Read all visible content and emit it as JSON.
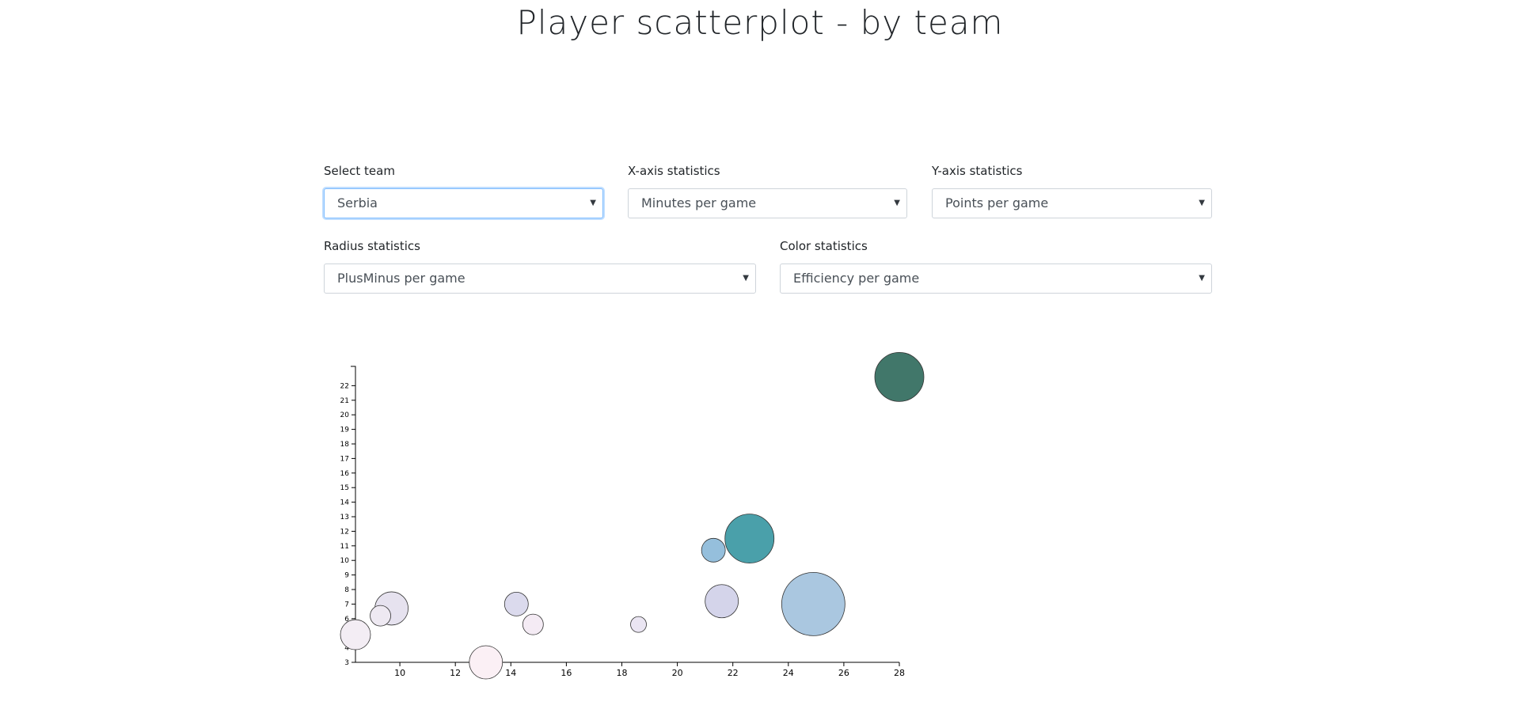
{
  "page": {
    "title": "Player scatterplot - by team"
  },
  "controls": {
    "team": {
      "label": "Select team",
      "value": "Serbia"
    },
    "x_axis": {
      "label": "X-axis statistics",
      "value": "Minutes per game"
    },
    "y_axis": {
      "label": "Y-axis statistics",
      "value": "Points per game"
    },
    "radius": {
      "label": "Radius statistics",
      "value": "PlusMinus per game"
    },
    "color": {
      "label": "Color statistics",
      "value": "Efficiency per game"
    }
  },
  "icons": {
    "dropdown": "chevron-down-icon"
  },
  "chart_data": {
    "type": "scatter",
    "title": "",
    "xlabel": "",
    "ylabel": "",
    "xlim": [
      8.4,
      28
    ],
    "ylim": [
      3,
      23
    ],
    "x_ticks": [
      10,
      12,
      14,
      16,
      18,
      20,
      22,
      24,
      26,
      28
    ],
    "y_ticks": [
      3,
      4,
      5,
      6,
      7,
      8,
      9,
      10,
      11,
      12,
      13,
      14,
      15,
      16,
      17,
      18,
      19,
      20,
      21,
      22
    ],
    "grid": false,
    "points": [
      {
        "x": 28.0,
        "y": 22.6,
        "r": 31,
        "color": "#41776a"
      },
      {
        "x": 22.6,
        "y": 11.5,
        "r": 31,
        "color": "#4aa0aa"
      },
      {
        "x": 21.3,
        "y": 10.7,
        "r": 15,
        "color": "#95bfdc"
      },
      {
        "x": 24.9,
        "y": 7.0,
        "r": 40,
        "color": "#aac7e0"
      },
      {
        "x": 21.6,
        "y": 7.2,
        "r": 21,
        "color": "#d4d4ea"
      },
      {
        "x": 18.6,
        "y": 5.6,
        "r": 10,
        "color": "#eae5f2"
      },
      {
        "x": 14.2,
        "y": 7.0,
        "r": 15,
        "color": "#dbdaed"
      },
      {
        "x": 14.8,
        "y": 5.6,
        "r": 13,
        "color": "#f4ebf4"
      },
      {
        "x": 13.1,
        "y": 3.0,
        "r": 21,
        "color": "#fbf0f5"
      },
      {
        "x": 9.7,
        "y": 6.7,
        "r": 21,
        "color": "#e6e2ef"
      },
      {
        "x": 9.3,
        "y": 6.2,
        "r": 13,
        "color": "#eee9f2"
      },
      {
        "x": 8.4,
        "y": 4.9,
        "r": 19,
        "color": "#f3edf4"
      }
    ]
  }
}
